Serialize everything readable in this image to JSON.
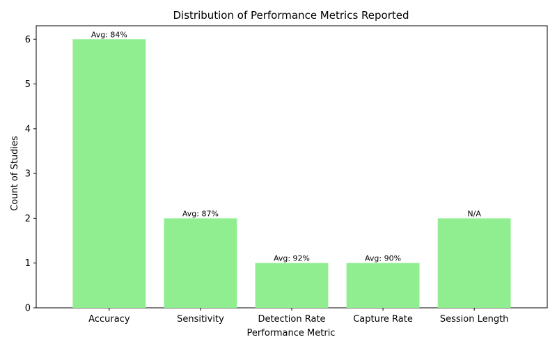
{
  "chart_data": {
    "type": "bar",
    "title": "Distribution of Performance Metrics Reported",
    "xlabel": "Performance Metric",
    "ylabel": "Count of Studies",
    "categories": [
      "Accuracy",
      "Sensitivity",
      "Detection Rate",
      "Capture Rate",
      "Session Length"
    ],
    "values": [
      6,
      2,
      1,
      1,
      2
    ],
    "data_labels": [
      "Avg: 84%",
      "Avg: 87%",
      "Avg: 92%",
      "Avg: 90%",
      "N/A"
    ],
    "ylim": [
      0,
      6.3
    ],
    "yticks": [
      0,
      1,
      2,
      3,
      4,
      5,
      6
    ],
    "grid": false,
    "legend": "none",
    "bar_color": "#90ee90"
  }
}
